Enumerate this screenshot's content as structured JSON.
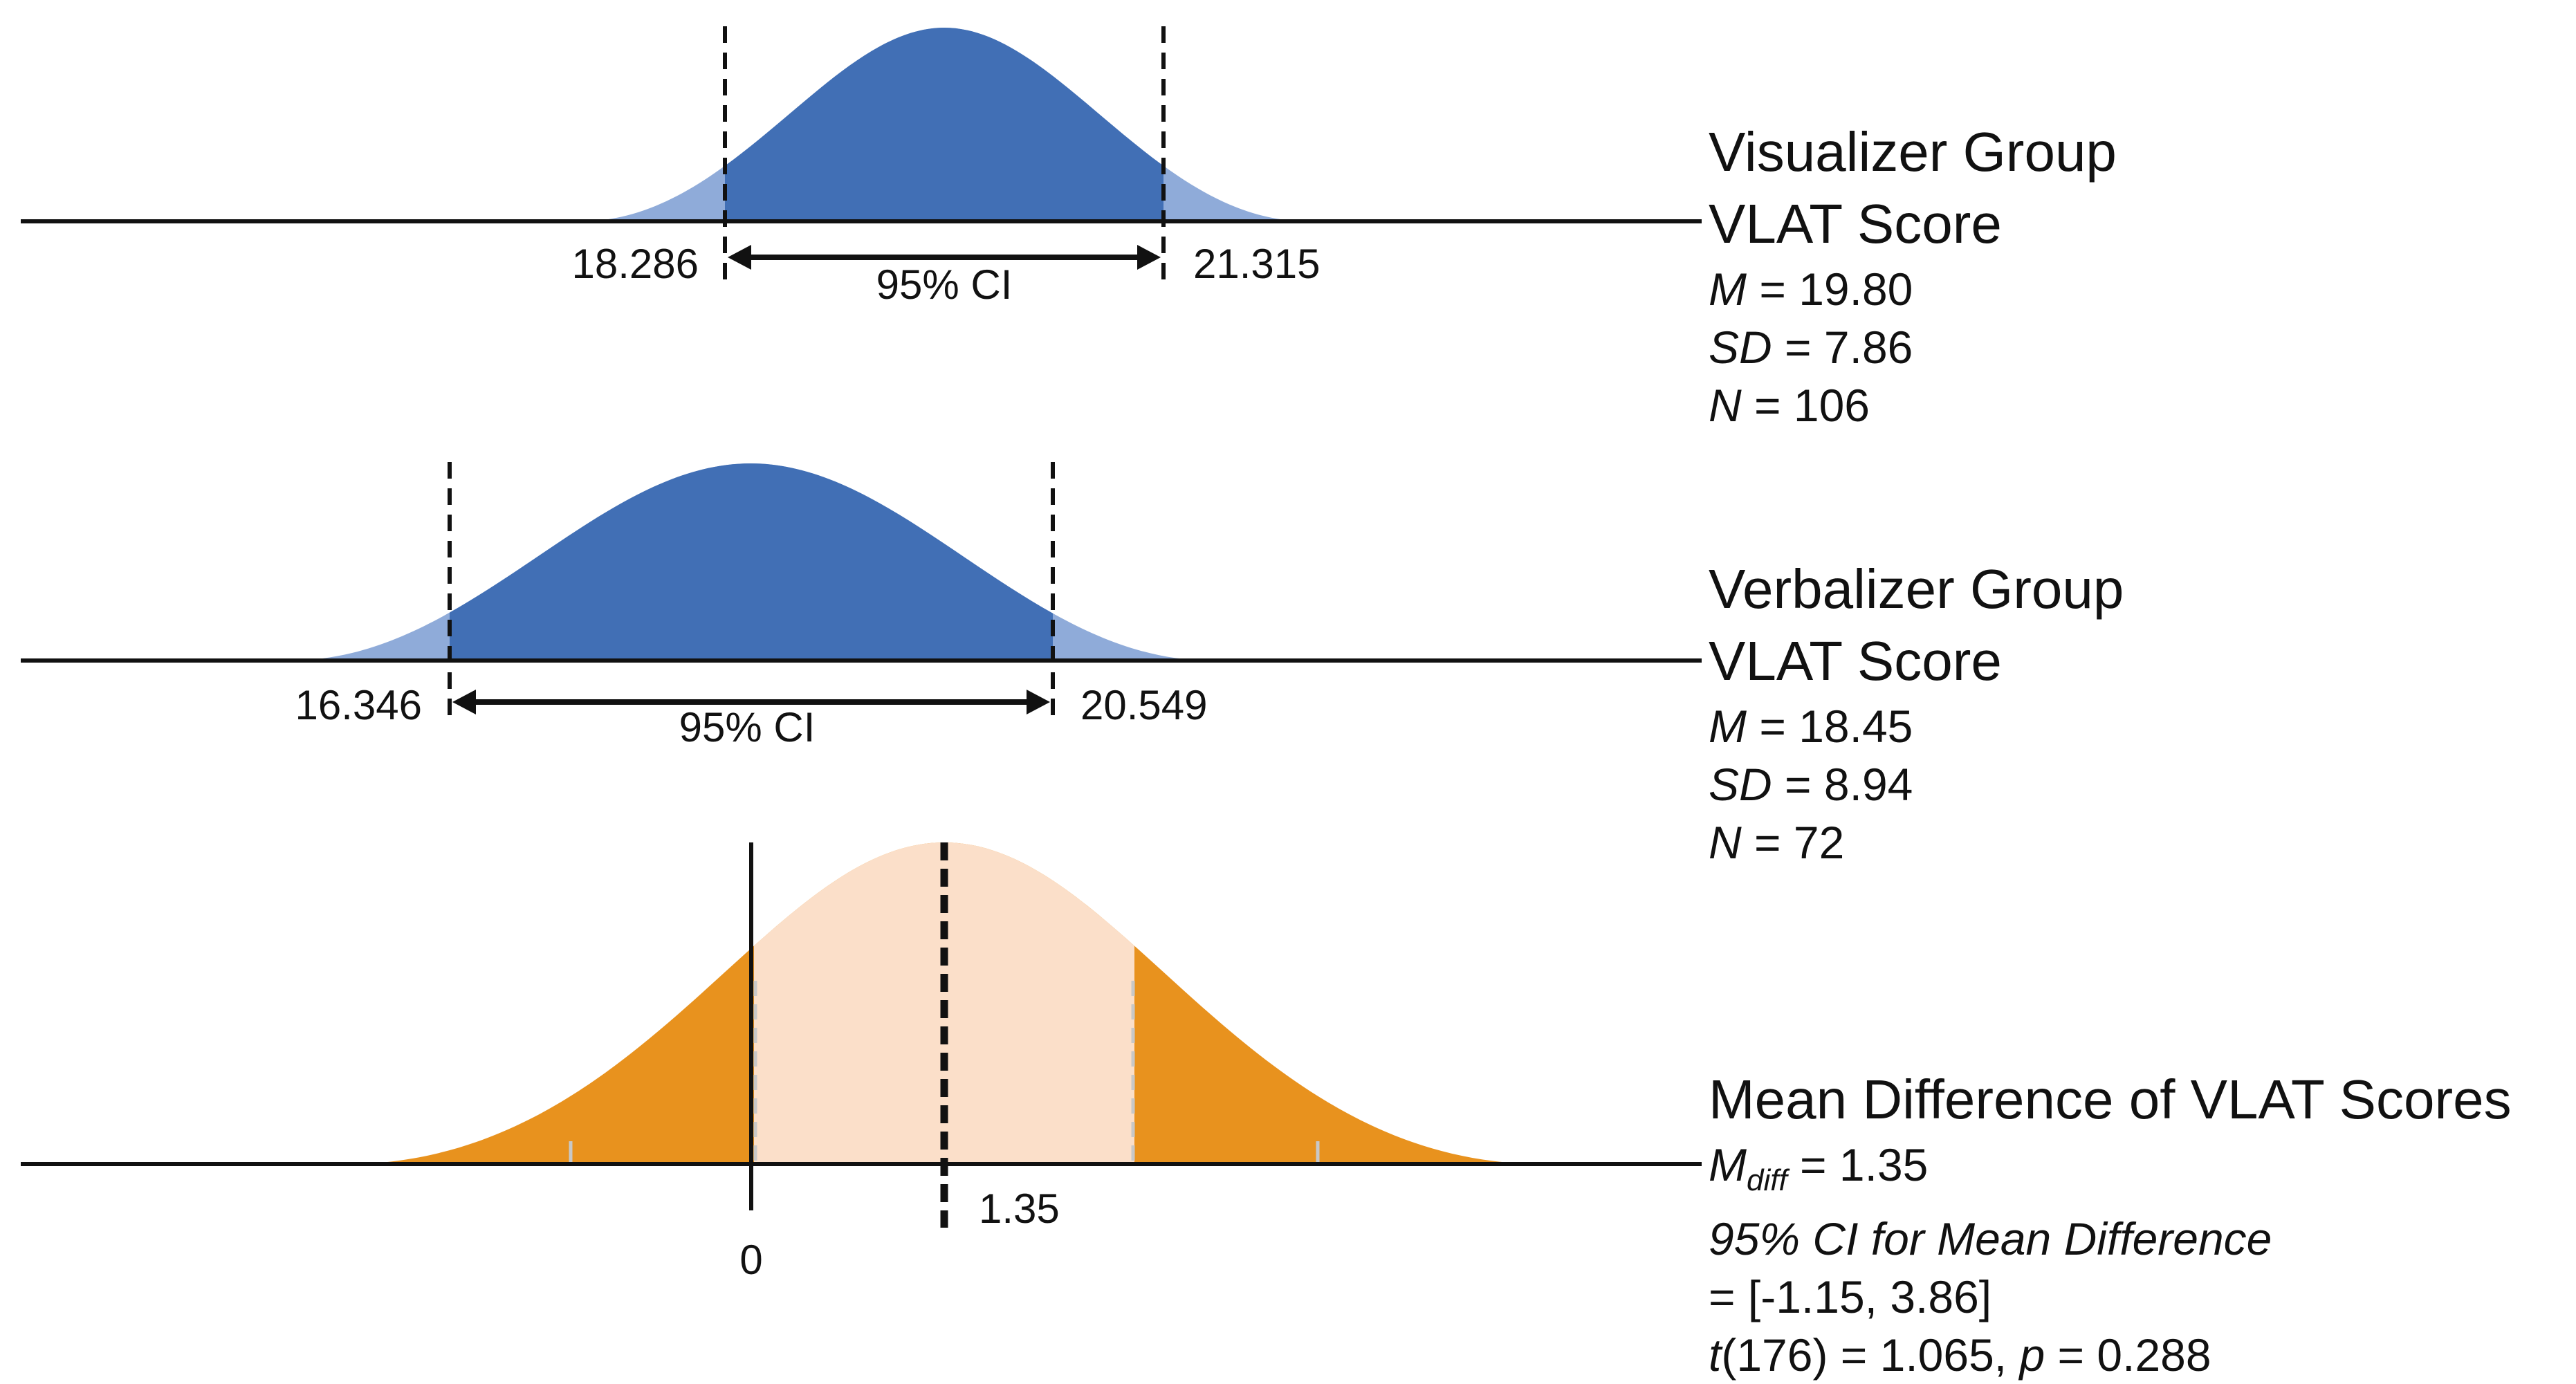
{
  "colors": {
    "group_fill": "#416fb5",
    "group_tail": "#8fabd9",
    "diff_center": "#fbdfc9",
    "diff_tail": "#e8921e",
    "ink": "#111111"
  },
  "visualizer": {
    "title_line1": "Visualizer Group",
    "title_line2": "VLAT Score",
    "m_label": "M",
    "m_text": " = 19.80",
    "sd_label": "SD",
    "sd_text": " = 7.86",
    "n_label": "N",
    "n_text": " = 106",
    "ci_low": "18.286",
    "ci_high": "21.315",
    "ci_label": "95% CI"
  },
  "verbalizer": {
    "title_line1": "Verbalizer Group",
    "title_line2": "VLAT Score",
    "m_label": "M",
    "m_text": " = 18.45",
    "sd_label": "SD",
    "sd_text": " = 8.94",
    "n_label": "N",
    "n_text": " = 72",
    "ci_low": "16.346",
    "ci_high": "20.549",
    "ci_label": "95% CI"
  },
  "difference": {
    "title": "Mean Difference of VLAT Scores",
    "mdiff_label": "M",
    "mdiff_sub": "diff",
    "mdiff_text": " = 1.35",
    "ci_heading": "95% CI for Mean Difference",
    "ci_text": "= [-1.15, 3.86]",
    "t_label": "t",
    "t_text": "(176) = 1.065, ",
    "p_label": "p",
    "p_text": " = 0.288",
    "zero_label": "0",
    "mean_label": "1.35"
  }
}
